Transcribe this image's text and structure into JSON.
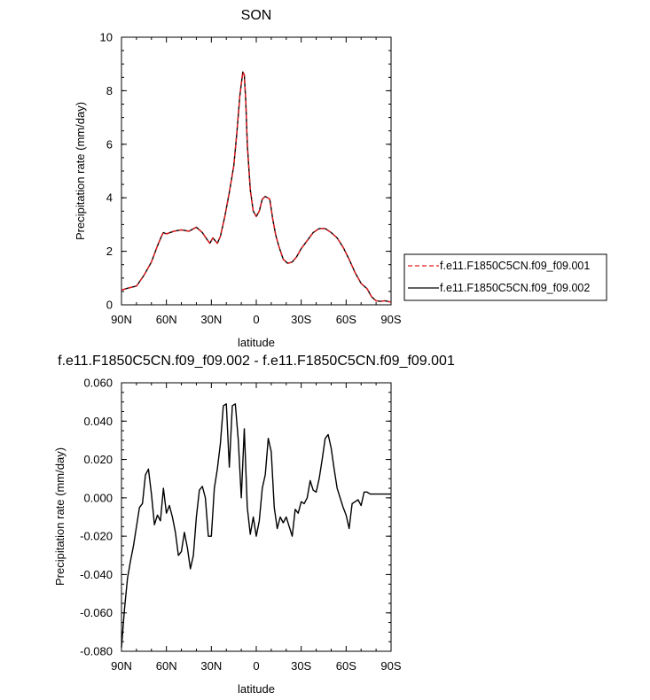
{
  "colors": {
    "series1": "#e41a1c",
    "series2": "#000000",
    "axis": "#000000"
  },
  "chart_data": [
    {
      "type": "line",
      "title": "SON",
      "xlabel": "latitude",
      "ylabel": "Precipitation rate (mm/day)",
      "xlim": [
        90,
        -90
      ],
      "ylim": [
        0,
        10
      ],
      "xticks": [
        90,
        60,
        30,
        0,
        -30,
        -60,
        -90
      ],
      "xtick_labels": [
        "90N",
        "60N",
        "30N",
        "0",
        "30S",
        "60S",
        "90S"
      ],
      "yticks": [
        0,
        2,
        4,
        6,
        8,
        10
      ],
      "ytick_labels": [
        "0",
        "2",
        "4",
        "6",
        "8",
        "10"
      ],
      "legend": {
        "placement": "right",
        "entries": [
          "f.e11.F1850C5CN.f09_f09.001",
          "f.e11.F1850C5CN.f09_f09.002"
        ]
      },
      "series": [
        {
          "name": "f.e11.F1850C5CN.f09_f09.001",
          "style": "dashed",
          "x": [
            90,
            86,
            80,
            75,
            70,
            66,
            63,
            62,
            60,
            55,
            50,
            45,
            40,
            36,
            33,
            31,
            29,
            26,
            24,
            21,
            18,
            15,
            13,
            11,
            9,
            8,
            7,
            6,
            4,
            2,
            0,
            -2,
            -4,
            -6,
            -9,
            -11,
            -13,
            -15,
            -18,
            -21,
            -24,
            -27,
            -30,
            -34,
            -38,
            -42,
            -46,
            -50,
            -54,
            -58,
            -62,
            -66,
            -70,
            -74,
            -77,
            -80,
            -83,
            -86,
            -90
          ],
          "values": [
            0.55,
            0.62,
            0.7,
            1.1,
            1.6,
            2.2,
            2.6,
            2.7,
            2.65,
            2.75,
            2.8,
            2.75,
            2.9,
            2.7,
            2.45,
            2.3,
            2.5,
            2.3,
            2.55,
            3.3,
            4.2,
            5.2,
            6.4,
            7.8,
            8.7,
            8.6,
            7.6,
            6.0,
            4.3,
            3.5,
            3.3,
            3.5,
            3.95,
            4.05,
            3.95,
            3.2,
            2.6,
            2.2,
            1.7,
            1.55,
            1.6,
            1.8,
            2.1,
            2.4,
            2.7,
            2.85,
            2.85,
            2.7,
            2.5,
            2.15,
            1.7,
            1.2,
            0.8,
            0.6,
            0.3,
            0.15,
            0.13,
            0.15,
            0.1
          ]
        },
        {
          "name": "f.e11.F1850C5CN.f09_f09.002",
          "style": "solid",
          "x": [
            90,
            86,
            80,
            75,
            70,
            66,
            63,
            62,
            60,
            55,
            50,
            45,
            40,
            36,
            33,
            31,
            29,
            26,
            24,
            21,
            18,
            15,
            13,
            11,
            9,
            8,
            7,
            6,
            4,
            2,
            0,
            -2,
            -4,
            -6,
            -9,
            -11,
            -13,
            -15,
            -18,
            -21,
            -24,
            -27,
            -30,
            -34,
            -38,
            -42,
            -46,
            -50,
            -54,
            -58,
            -62,
            -66,
            -70,
            -74,
            -77,
            -80,
            -83,
            -86,
            -90
          ],
          "values": [
            0.55,
            0.62,
            0.7,
            1.1,
            1.6,
            2.2,
            2.6,
            2.7,
            2.65,
            2.75,
            2.8,
            2.75,
            2.9,
            2.7,
            2.45,
            2.3,
            2.5,
            2.3,
            2.55,
            3.3,
            4.2,
            5.2,
            6.4,
            7.8,
            8.7,
            8.6,
            7.6,
            6.0,
            4.3,
            3.5,
            3.3,
            3.5,
            3.95,
            4.05,
            3.95,
            3.2,
            2.6,
            2.2,
            1.7,
            1.55,
            1.6,
            1.8,
            2.1,
            2.4,
            2.7,
            2.85,
            2.85,
            2.7,
            2.5,
            2.15,
            1.7,
            1.2,
            0.8,
            0.6,
            0.3,
            0.15,
            0.13,
            0.15,
            0.1
          ]
        }
      ]
    },
    {
      "type": "line",
      "title": "f.e11.F1850C5CN.f09_f09.002 - f.e11.F1850C5CN.f09_f09.001",
      "xlabel": "latitude",
      "ylabel": "Precipitation rate (mm/day)",
      "xlim": [
        90,
        -90
      ],
      "ylim": [
        -0.08,
        0.06
      ],
      "xticks": [
        90,
        60,
        30,
        0,
        -30,
        -60,
        -90
      ],
      "xtick_labels": [
        "90N",
        "60N",
        "30N",
        "0",
        "30S",
        "60S",
        "90S"
      ],
      "yticks": [
        -0.08,
        -0.06,
        -0.04,
        -0.02,
        0,
        0.02,
        0.04,
        0.06
      ],
      "ytick_labels": [
        "-0.080",
        "-0.060",
        "-0.040",
        "-0.020",
        "0.000",
        "0.020",
        "0.040",
        "0.060"
      ],
      "series": [
        {
          "name": "f.e11.F1850C5CN.f09_f09.002 - f.e11.F1850C5CN.f09_f09.001",
          "style": "solid",
          "x": [
            90,
            88,
            86,
            84,
            82,
            80,
            78,
            76,
            74,
            72,
            70,
            68,
            66,
            64,
            62,
            60,
            58,
            56,
            54,
            52,
            50,
            48,
            46,
            44,
            42,
            40,
            38,
            36,
            34,
            32,
            30,
            28,
            26,
            24,
            22,
            20,
            18,
            16,
            14,
            12,
            10,
            8,
            6,
            4,
            2,
            0,
            -2,
            -4,
            -6,
            -8,
            -10,
            -12,
            -14,
            -16,
            -18,
            -20,
            -22,
            -24,
            -26,
            -28,
            -30,
            -32,
            -34,
            -36,
            -38,
            -40,
            -42,
            -44,
            -46,
            -48,
            -50,
            -52,
            -54,
            -56,
            -58,
            -60,
            -62,
            -64,
            -66,
            -68,
            -70,
            -72,
            -74,
            -76,
            -78,
            -80,
            -82,
            -84,
            -86,
            -88,
            -90
          ],
          "values": [
            -0.078,
            -0.058,
            -0.042,
            -0.033,
            -0.025,
            -0.015,
            -0.005,
            -0.003,
            0.012,
            0.015,
            0.002,
            -0.014,
            -0.009,
            -0.012,
            0.005,
            -0.008,
            -0.004,
            -0.01,
            -0.018,
            -0.03,
            -0.028,
            -0.018,
            -0.026,
            -0.037,
            -0.03,
            -0.01,
            0.004,
            0.006,
            0.0,
            -0.02,
            -0.02,
            0.005,
            0.015,
            0.028,
            0.048,
            0.049,
            0.016,
            0.048,
            0.049,
            0.03,
            0.0,
            0.036,
            -0.005,
            -0.019,
            -0.01,
            -0.02,
            -0.012,
            0.005,
            0.012,
            0.031,
            0.024,
            -0.005,
            -0.016,
            -0.01,
            -0.013,
            -0.01,
            -0.015,
            -0.02,
            -0.006,
            -0.008,
            -0.002,
            -0.003,
            0.0,
            0.009,
            0.004,
            0.003,
            0.01,
            0.02,
            0.031,
            0.033,
            0.026,
            0.015,
            0.005,
            0.0,
            -0.005,
            -0.009,
            -0.016,
            -0.003,
            -0.002,
            -0.001,
            -0.004,
            0.003,
            0.003,
            0.002,
            0.002,
            0.002,
            0.002,
            0.002,
            0.002,
            0.002,
            0.002
          ]
        }
      ]
    }
  ]
}
